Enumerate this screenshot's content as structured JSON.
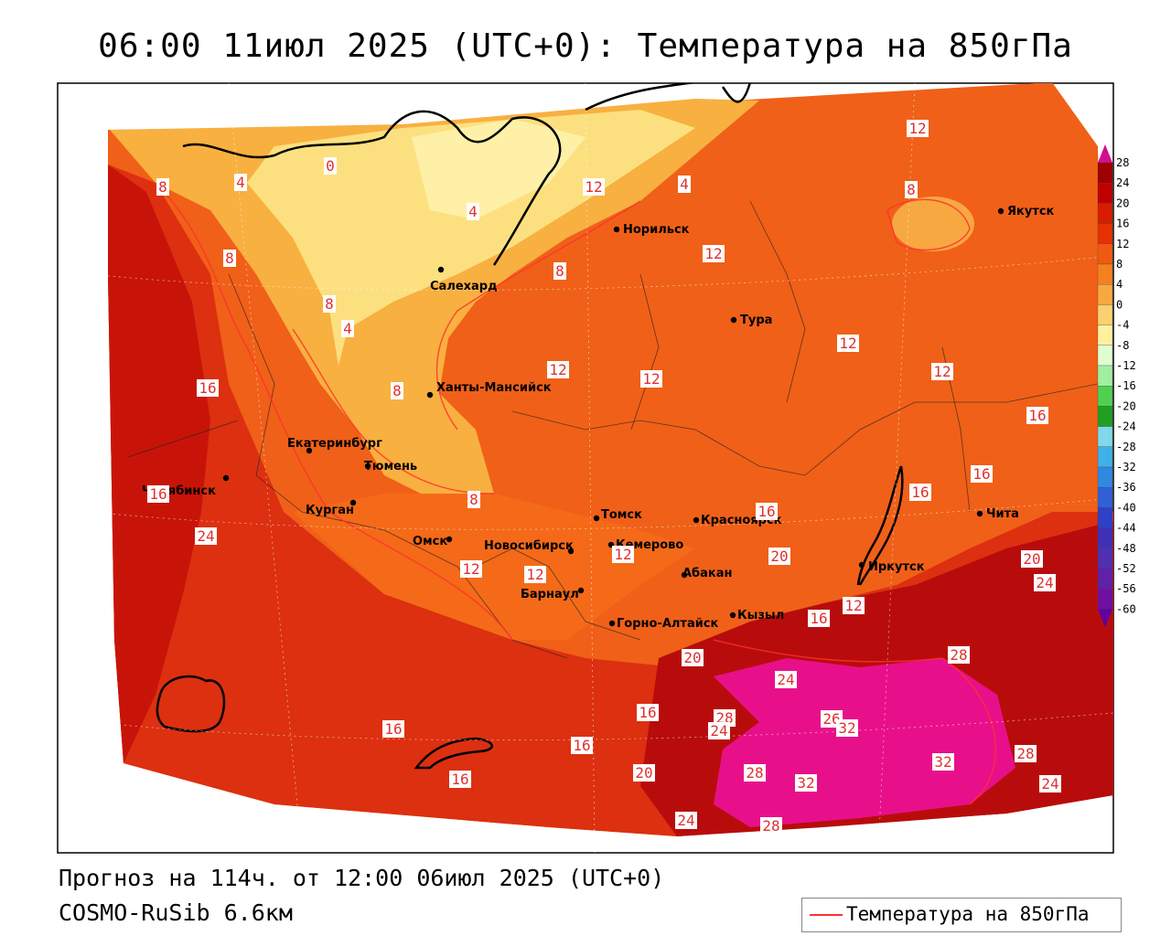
{
  "title": "06:00 11июл 2025 (UTC+0): Температура на 850гПа",
  "footer": {
    "forecast": "Прогноз на 114ч. от 12:00 06июл 2025 (UTC+0)",
    "model": "COSMO-RuSib 6.6км"
  },
  "legend": {
    "label": "Температура на 850гПа",
    "line_color": "#ff3030"
  },
  "colorbar": {
    "ticks": [
      "28",
      "24",
      "20",
      "16",
      "12",
      "8",
      "4",
      "0",
      "-4",
      "-8",
      "-12",
      "-16",
      "-20",
      "-24",
      "-28",
      "-32",
      "-36",
      "-40",
      "-44",
      "-48",
      "-52",
      "-56",
      "-60"
    ],
    "colors": [
      "#a00000",
      "#c00000",
      "#d81c00",
      "#e83000",
      "#f05a10",
      "#f48020",
      "#f8a840",
      "#fcd070",
      "#fff0a0",
      "#e0ffd0",
      "#a0f0a0",
      "#50d050",
      "#20a020",
      "#80d8e8",
      "#40b0e8",
      "#3088e0",
      "#3060d8",
      "#3040c8",
      "#4030b8",
      "#5030b0",
      "#6020a8",
      "#7010a0",
      "#7000a0"
    ]
  },
  "cities": [
    {
      "name": "Якутск"
    },
    {
      "name": "Норильск"
    },
    {
      "name": "Салехард"
    },
    {
      "name": "Тура"
    },
    {
      "name": "Ханты-Мансийск"
    },
    {
      "name": "Екатеринбург"
    },
    {
      "name": "Тюмень"
    },
    {
      "name": "Челябинск"
    },
    {
      "name": "Курган"
    },
    {
      "name": "Омск"
    },
    {
      "name": "Новосибирск"
    },
    {
      "name": "Томск"
    },
    {
      "name": "Кемерово"
    },
    {
      "name": "Красноярск"
    },
    {
      "name": "Барнаул"
    },
    {
      "name": "Абакан"
    },
    {
      "name": "Иркутск"
    },
    {
      "name": "Чита"
    },
    {
      "name": "Горно-Алтайск"
    },
    {
      "name": "Кызыл"
    }
  ],
  "isotherm_labels": [
    "12",
    "8",
    "4",
    "0",
    "4",
    "12",
    "4",
    "8",
    "8",
    "8",
    "12",
    "8",
    "4",
    "12",
    "12",
    "12",
    "12",
    "16",
    "8",
    "16",
    "16",
    "8",
    "12",
    "12",
    "16",
    "16",
    "12",
    "20",
    "20",
    "24",
    "16",
    "24",
    "12",
    "20",
    "28",
    "24",
    "16",
    "28",
    "24",
    "26",
    "32",
    "16",
    "32",
    "28",
    "20",
    "28",
    "32",
    "16",
    "16",
    "16",
    "24",
    "28",
    "24"
  ]
}
